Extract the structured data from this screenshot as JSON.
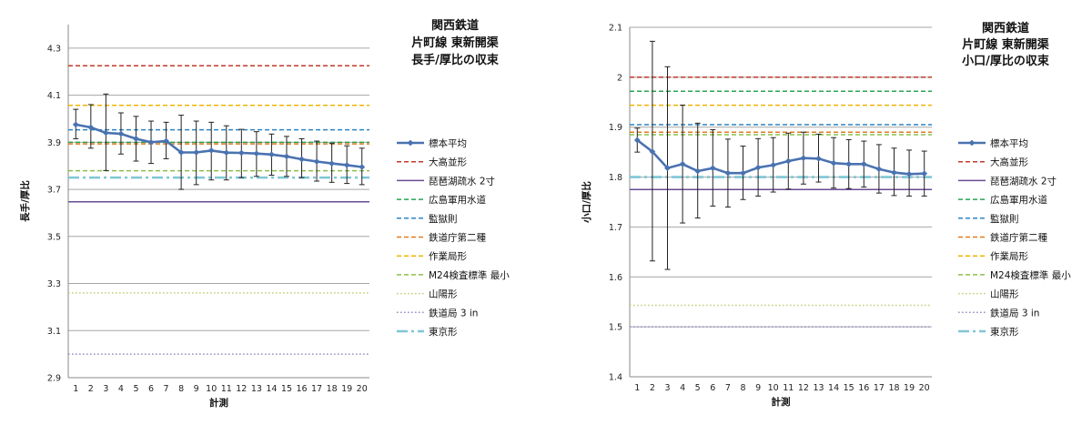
{
  "chart_data": [
    {
      "type": "line",
      "title": [
        "関西鉄道",
        "片町線 東新開渠",
        "長手/厚比の収束"
      ],
      "xlabel": "計測",
      "ylabel": "長手/厚比",
      "ylim": [
        2.9,
        4.4
      ],
      "yticks": [
        "2.9",
        "3.1",
        "3.3",
        "3.5",
        "3.7",
        "3.9",
        "4.1",
        "4.3"
      ],
      "x": [
        1,
        2,
        3,
        4,
        5,
        6,
        7,
        8,
        9,
        10,
        11,
        12,
        13,
        14,
        15,
        16,
        17,
        18,
        19,
        20
      ],
      "series": [
        {
          "name": "標本平均",
          "color": "#4a72b0",
          "values": [
            3.975,
            3.963,
            3.94,
            3.936,
            3.915,
            3.9,
            3.905,
            3.857,
            3.857,
            3.865,
            3.856,
            3.855,
            3.852,
            3.848,
            3.84,
            3.828,
            3.818,
            3.81,
            3.803,
            3.795
          ],
          "error_low": [
            3.915,
            3.875,
            3.78,
            3.85,
            3.82,
            3.81,
            3.83,
            3.7,
            3.72,
            3.74,
            3.74,
            3.75,
            3.755,
            3.76,
            3.755,
            3.75,
            3.735,
            3.73,
            3.725,
            3.72
          ],
          "error_high": [
            4.04,
            4.06,
            4.105,
            4.025,
            4.01,
            3.99,
            3.985,
            4.015,
            3.99,
            3.985,
            3.97,
            3.955,
            3.945,
            3.935,
            3.925,
            3.915,
            3.905,
            3.895,
            3.885,
            3.875
          ]
        }
      ],
      "reference_lines": [
        {
          "name": "大高並形",
          "value": 4.225,
          "color": "#c0392b",
          "style": "dash"
        },
        {
          "name": "琵琶湖疏水 2寸",
          "value": 3.647,
          "color": "#6a4c93",
          "style": "solid"
        },
        {
          "name": "広島軍用水道",
          "value": 3.9,
          "color": "#2aa452",
          "style": "dash"
        },
        {
          "name": "監獄則",
          "value": 3.953,
          "color": "#2b84c6",
          "style": "dash"
        },
        {
          "name": "鉄道庁第二種",
          "value": 3.893,
          "color": "#e07b20",
          "style": "dash"
        },
        {
          "name": "作業局形",
          "value": 4.057,
          "color": "#f0b400",
          "style": "dash"
        },
        {
          "name": "M24検査標準 最小",
          "value": 3.779,
          "color": "#8ac04a",
          "style": "dash"
        },
        {
          "name": "山陽形",
          "value": 3.26,
          "color": "#c5cf7a",
          "style": "dot"
        },
        {
          "name": "鉄道局 3 in",
          "value": 3.0,
          "color": "#9a8fc4",
          "style": "dot"
        },
        {
          "name": "東京形",
          "value": 3.75,
          "color": "#7fc6d6",
          "style": "dashdot"
        }
      ]
    },
    {
      "type": "line",
      "title": [
        "関西鉄道",
        "片町線 東新開渠",
        "小口/厚比の収束"
      ],
      "xlabel": "計測",
      "ylabel": "小口/厚比",
      "ylim": [
        1.4,
        2.1
      ],
      "yticks": [
        "1.4",
        "1.5",
        "1.6",
        "1.7",
        "1.8",
        "1.9",
        "2",
        "2.1"
      ],
      "x": [
        1,
        2,
        3,
        4,
        5,
        6,
        7,
        8,
        9,
        10,
        11,
        12,
        13,
        14,
        15,
        16,
        17,
        18,
        19,
        20
      ],
      "series": [
        {
          "name": "標本平均",
          "color": "#4a72b0",
          "values": [
            1.874,
            1.851,
            1.818,
            1.826,
            1.812,
            1.818,
            1.808,
            1.808,
            1.819,
            1.824,
            1.832,
            1.838,
            1.837,
            1.828,
            1.826,
            1.826,
            1.816,
            1.809,
            1.806,
            1.807
          ],
          "error_low": [
            1.85,
            1.632,
            1.615,
            1.708,
            1.718,
            1.742,
            1.74,
            1.755,
            1.762,
            1.77,
            1.776,
            1.786,
            1.79,
            1.778,
            1.777,
            1.78,
            1.768,
            1.763,
            1.762,
            1.762
          ],
          "error_high": [
            1.898,
            2.072,
            2.021,
            1.944,
            1.908,
            1.895,
            1.876,
            1.862,
            1.877,
            1.879,
            1.888,
            1.89,
            1.886,
            1.879,
            1.875,
            1.872,
            1.865,
            1.858,
            1.854,
            1.852
          ]
        }
      ],
      "reference_lines": [
        {
          "name": "大高並形",
          "value": 2.0,
          "color": "#c0392b",
          "style": "dash"
        },
        {
          "name": "琵琶湖疏水 2寸",
          "value": 1.775,
          "color": "#6a4c93",
          "style": "solid"
        },
        {
          "name": "広島軍用水道",
          "value": 1.972,
          "color": "#2aa452",
          "style": "dash"
        },
        {
          "name": "監獄則",
          "value": 1.905,
          "color": "#2b84c6",
          "style": "dash"
        },
        {
          "name": "鉄道庁第二種",
          "value": 1.89,
          "color": "#e07b20",
          "style": "dash"
        },
        {
          "name": "作業局形",
          "value": 1.944,
          "color": "#f0b400",
          "style": "dash"
        },
        {
          "name": "M24検査標準 最小",
          "value": 1.885,
          "color": "#8ac04a",
          "style": "dash"
        },
        {
          "name": "山陽形",
          "value": 1.543,
          "color": "#c5cf7a",
          "style": "dot"
        },
        {
          "name": "鉄道局 3 in",
          "value": 1.5,
          "color": "#9a8fc4",
          "style": "dot"
        },
        {
          "name": "東京形",
          "value": 1.8,
          "color": "#7fc6d6",
          "style": "dashdot"
        }
      ]
    }
  ]
}
